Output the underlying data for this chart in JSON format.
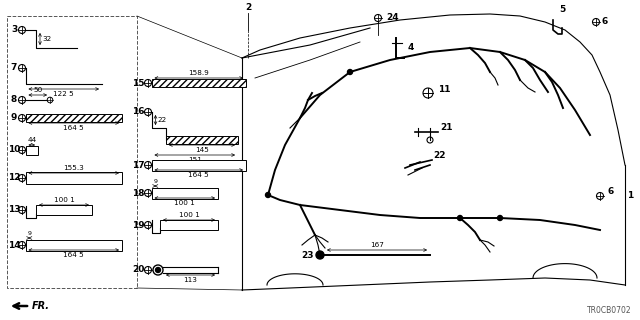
{
  "bg_color": "#ffffff",
  "diagram_code": "TR0CB0702",
  "fig_w": 6.4,
  "fig_h": 3.2,
  "dpi": 100
}
